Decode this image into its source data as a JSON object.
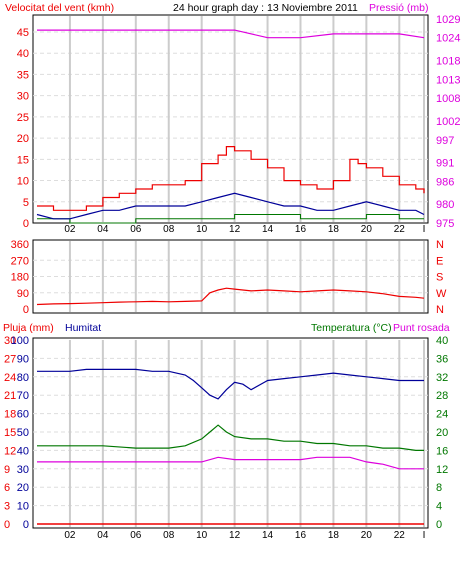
{
  "colors": {
    "red": "#ee0000",
    "blue": "#000099",
    "green": "#007700",
    "magenta": "#dd00dd",
    "grid_v": "#cccccc",
    "grid_h": "#dddddd"
  },
  "chart_data": [
    {
      "type": "line",
      "title": "24 hour graph day : 13 Noviembre 2011",
      "left_axis_label": "Velocitat del vent (kmh)",
      "right_axis_label": "Pressió (mb)",
      "x_ticks": [
        "02",
        "04",
        "06",
        "08",
        "10",
        "12",
        "14",
        "16",
        "18",
        "20",
        "22",
        "I"
      ],
      "left_ticks": [
        "0",
        "5",
        "10",
        "15",
        "20",
        "25",
        "30",
        "35",
        "40",
        "45"
      ],
      "right_ticks": [
        "975",
        "980",
        "986",
        "991",
        "997",
        "1002",
        "1008",
        "1013",
        "1018",
        "1024",
        "1029"
      ],
      "ylim_left": [
        0,
        49
      ],
      "ylim_right": [
        975,
        1030
      ],
      "pressure": {
        "x": [
          0,
          2,
          4,
          6,
          8,
          10,
          12,
          14,
          16,
          18,
          20,
          22,
          23.5
        ],
        "y": [
          1026,
          1026,
          1026,
          1026,
          1026,
          1026,
          1026,
          1024,
          1024,
          1025,
          1025,
          1025,
          1024
        ]
      },
      "wind_gust": {
        "x": [
          0,
          1,
          2,
          3,
          4,
          5,
          6,
          7,
          8,
          9,
          10,
          11,
          11.5,
          12,
          13,
          14,
          15,
          16,
          17,
          18,
          19,
          19.5,
          20,
          21,
          22,
          23,
          23.5
        ],
        "y": [
          4,
          3,
          3,
          4,
          6,
          7,
          8,
          9,
          9,
          10,
          14,
          16,
          18,
          17,
          15,
          13,
          10,
          9,
          8,
          10,
          15,
          14,
          13,
          11,
          9,
          8,
          7
        ]
      },
      "wind_avg": {
        "x": [
          0,
          1,
          2,
          3,
          4,
          5,
          6,
          7,
          8,
          9,
          10,
          11,
          12,
          13,
          14,
          15,
          16,
          17,
          18,
          19,
          20,
          21,
          22,
          23,
          23.5
        ],
        "y": [
          2,
          1,
          1,
          2,
          3,
          3,
          4,
          4,
          4,
          4,
          5,
          6,
          7,
          6,
          5,
          4,
          4,
          3,
          3,
          4,
          5,
          4,
          3,
          3,
          2
        ]
      },
      "wind_low": {
        "x": [
          0,
          2,
          4,
          6,
          8,
          10,
          12,
          14,
          16,
          18,
          20,
          22,
          23.5
        ],
        "y": [
          1,
          0,
          0,
          1,
          1,
          1,
          2,
          2,
          1,
          1,
          2,
          1,
          1
        ]
      }
    },
    {
      "type": "line",
      "left_ticks": [
        "0",
        "90",
        "180",
        "270",
        "360"
      ],
      "right_labels": [
        "N",
        "W",
        "S",
        "E",
        "N"
      ],
      "ylim": [
        0,
        360
      ],
      "direction": {
        "x": [
          0,
          1,
          2,
          3,
          4,
          5,
          6,
          7,
          8,
          9,
          10,
          10.5,
          11,
          11.5,
          12,
          13,
          14,
          15,
          16,
          17,
          18,
          19,
          20,
          21,
          22,
          23,
          23.5
        ],
        "y": [
          25,
          28,
          30,
          32,
          35,
          38,
          40,
          42,
          40,
          42,
          45,
          90,
          105,
          115,
          110,
          100,
          105,
          100,
          95,
          100,
          105,
          100,
          95,
          85,
          70,
          65,
          60
        ]
      }
    },
    {
      "type": "line",
      "left_rain_label": "Pluja (mm)",
      "left_hum_label": "Humitat",
      "right_label_temp": "Temperatura (°C)",
      "right_label_dew": "Punt rosada",
      "x_ticks": [
        "02",
        "04",
        "06",
        "08",
        "10",
        "12",
        "14",
        "16",
        "18",
        "20",
        "22",
        "I"
      ],
      "rain_ticks": [
        "0",
        "3",
        "6",
        "9",
        "12",
        "15",
        "18",
        "21",
        "24",
        "27",
        "30"
      ],
      "hum_ticks": [
        "0",
        "10",
        "20",
        "30",
        "40",
        "50",
        "60",
        "70",
        "80",
        "90",
        "100"
      ],
      "temp_ticks": [
        "0",
        "4",
        "8",
        "12",
        "16",
        "20",
        "24",
        "28",
        "32",
        "36",
        "40"
      ],
      "ylim_rain": [
        0,
        30
      ],
      "ylim_hum": [
        0,
        100
      ],
      "ylim_temp": [
        0,
        40
      ],
      "rain": {
        "x": [
          0,
          23.5
        ],
        "y": [
          0,
          0
        ]
      },
      "humidity": {
        "x": [
          0,
          1,
          2,
          3,
          4,
          5,
          6,
          7,
          8,
          9,
          9.5,
          10,
          10.5,
          11,
          11.5,
          12,
          12.5,
          13,
          14,
          15,
          16,
          17,
          18,
          19,
          20,
          21,
          22,
          23,
          23.5
        ],
        "y": [
          83,
          83,
          83,
          84,
          84,
          84,
          84,
          83,
          83,
          81,
          78,
          74,
          70,
          68,
          73,
          77,
          76,
          73,
          78,
          79,
          80,
          81,
          82,
          81,
          80,
          79,
          78,
          78,
          78
        ]
      },
      "temperature": {
        "x": [
          0,
          2,
          4,
          6,
          8,
          9,
          10,
          10.5,
          11,
          11.5,
          12,
          13,
          14,
          15,
          16,
          17,
          18,
          19,
          20,
          21,
          22,
          23,
          23.5
        ],
        "y": [
          17,
          17,
          17,
          16.5,
          16.5,
          17,
          18.5,
          20,
          21.5,
          20,
          19,
          18.5,
          18.5,
          18,
          18,
          17.5,
          17.5,
          17,
          17,
          16.5,
          16.5,
          16,
          16
        ]
      },
      "dewpoint": {
        "x": [
          0,
          2,
          4,
          6,
          8,
          10,
          11,
          12,
          13,
          14,
          15,
          16,
          17,
          18,
          19,
          20,
          21,
          22,
          23,
          23.5
        ],
        "y": [
          13.5,
          13.5,
          13.5,
          13.5,
          13.5,
          13.5,
          14.5,
          14,
          14,
          14,
          14,
          14,
          14.5,
          14.5,
          14.5,
          13.5,
          13,
          12,
          12,
          12
        ]
      }
    }
  ]
}
